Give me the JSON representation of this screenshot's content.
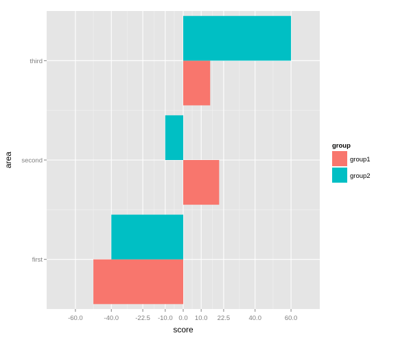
{
  "chart_data": {
    "type": "bar",
    "orientation": "horizontal",
    "position": "dodge",
    "categories": [
      "first",
      "second",
      "third"
    ],
    "series": [
      {
        "name": "group1",
        "values": [
          -50,
          20,
          15
        ],
        "color": "#F8766D"
      },
      {
        "name": "group2",
        "values": [
          -40,
          -10,
          60
        ],
        "color": "#00BFC4"
      }
    ],
    "xlabel": "score",
    "ylabel": "area",
    "xlim": [
      -76,
      76
    ],
    "x_ticks": [
      -60,
      -40,
      -22.5,
      -10,
      0,
      10,
      22.5,
      40,
      60
    ],
    "x_tick_labels": [
      "-60.0",
      "-40.0",
      "-22.5",
      "-10.0",
      "0.0",
      "10.0",
      "22.5",
      "40.0",
      "60.0"
    ],
    "legend": {
      "title": "group",
      "position": "right",
      "items": [
        "group1",
        "group2"
      ]
    },
    "grid": true,
    "panel_background": "#E5E5E5",
    "grid_color": "#FFFFFF"
  }
}
